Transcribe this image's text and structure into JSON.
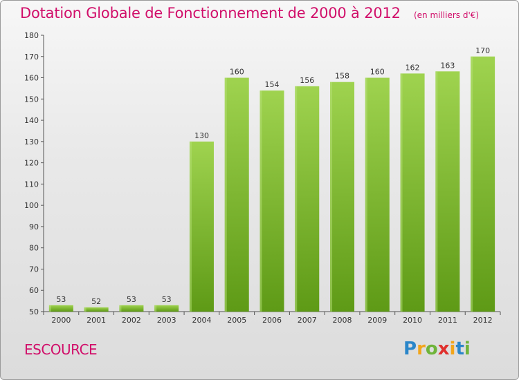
{
  "header": {
    "title": "Dotation Globale de Fonctionnement de 2000 à 2012",
    "unit": "(en milliers d'€)"
  },
  "commune": "ESCOURCE",
  "logo": {
    "text": "Proxiti"
  },
  "colors": {
    "accent": "#d10f6a",
    "bar_top": "#9fd34f",
    "bar_bottom": "#5e9a16",
    "axis": "#555555"
  },
  "chart_data": {
    "type": "bar",
    "title": "Dotation Globale de Fonctionnement de 2000 à 2012",
    "subtitle": "(en milliers d'€)",
    "xlabel": "",
    "ylabel": "",
    "categories": [
      "2000",
      "2001",
      "2002",
      "2003",
      "2004",
      "2005",
      "2006",
      "2007",
      "2008",
      "2009",
      "2010",
      "2011",
      "2012"
    ],
    "values": [
      53,
      52,
      53,
      53,
      130,
      160,
      154,
      156,
      158,
      160,
      162,
      163,
      170
    ],
    "data_labels": [
      "53",
      "52",
      "53",
      "53",
      "130",
      "160",
      "154",
      "156",
      "158",
      "160",
      "162",
      "163",
      "170"
    ],
    "ylim": [
      50,
      180
    ],
    "yticks": [
      50,
      60,
      70,
      80,
      90,
      100,
      110,
      120,
      130,
      140,
      150,
      160,
      170,
      180
    ],
    "grid": false,
    "legend": "none"
  }
}
